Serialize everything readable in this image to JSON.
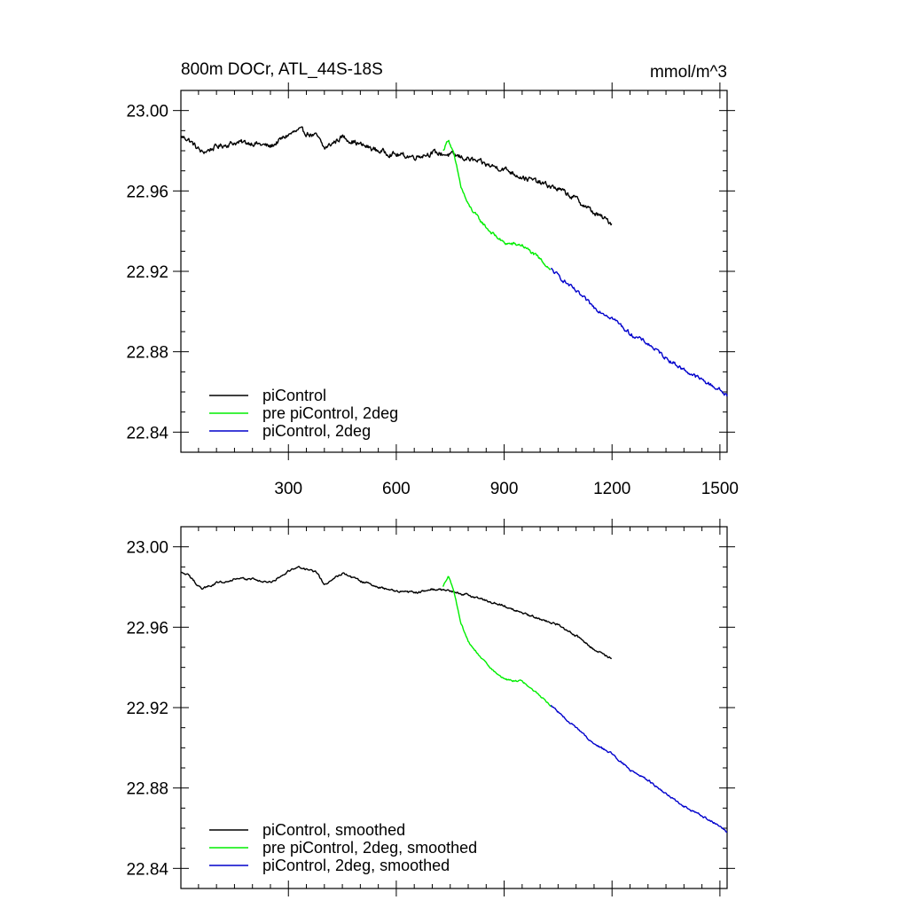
{
  "header": {
    "title": "800m DOCr, ATL_44S-18S",
    "units": "mmol/m^3"
  },
  "colors": {
    "piControl": "#000000",
    "pre_2deg": "#00ee00",
    "piControl_2deg": "#0000cc"
  },
  "chart_data": [
    {
      "type": "line",
      "panel": "top",
      "xlim": [
        1,
        1520
      ],
      "ylim": [
        22.83,
        23.01
      ],
      "xticks": [
        300,
        600,
        900,
        1200,
        1500
      ],
      "xtick_labels": [
        "300",
        "600",
        "900",
        "1200",
        "1500"
      ],
      "yticks": [
        22.84,
        22.88,
        22.92,
        22.96,
        23.0
      ],
      "ytick_labels": [
        "22.84",
        "22.88",
        "22.92",
        "22.96",
        "23.00"
      ],
      "legend": [
        "piControl",
        "pre piControl, 2deg",
        "piControl, 2deg"
      ],
      "legend_position": "bottom-left",
      "series": [
        {
          "name": "piControl",
          "color": "#000000",
          "noise": 0.0022,
          "x": [
            1,
            20,
            60,
            100,
            150,
            200,
            250,
            300,
            330,
            380,
            400,
            450,
            500,
            550,
            600,
            650,
            700,
            750,
            800,
            850,
            900,
            950,
            1000,
            1050,
            1100,
            1150,
            1200
          ],
          "y": [
            22.987,
            22.986,
            22.979,
            22.982,
            22.984,
            22.984,
            22.982,
            22.988,
            22.99,
            22.987,
            22.981,
            22.987,
            22.983,
            22.98,
            22.978,
            22.977,
            22.979,
            22.978,
            22.976,
            22.973,
            22.971,
            22.967,
            22.964,
            22.961,
            22.956,
            22.949,
            22.944
          ]
        },
        {
          "name": "pre piControl, 2deg",
          "color": "#00ee00",
          "noise": 0.0014,
          "x": [
            730,
            745,
            760,
            780,
            800,
            830,
            860,
            900,
            950,
            1000,
            1030
          ],
          "y": [
            22.98,
            22.986,
            22.978,
            22.962,
            22.953,
            22.946,
            22.94,
            22.934,
            22.933,
            22.926,
            22.921
          ]
        },
        {
          "name": "piControl, 2deg",
          "color": "#0000cc",
          "noise": 0.0016,
          "x": [
            1030,
            1100,
            1150,
            1200,
            1250,
            1300,
            1350,
            1400,
            1450,
            1500,
            1520
          ],
          "y": [
            22.921,
            22.91,
            22.902,
            22.897,
            22.889,
            22.884,
            22.877,
            22.871,
            22.866,
            22.861,
            22.858
          ]
        }
      ]
    },
    {
      "type": "line",
      "panel": "bottom",
      "xlim": [
        1,
        1520
      ],
      "ylim": [
        22.83,
        23.01
      ],
      "xticks": [
        300,
        600,
        900,
        1200,
        1500
      ],
      "yticks": [
        22.84,
        22.88,
        22.92,
        22.96,
        23.0
      ],
      "ytick_labels": [
        "22.84",
        "22.88",
        "22.92",
        "22.96",
        "23.00"
      ],
      "legend": [
        "piControl, smoothed",
        "pre piControl, 2deg, smoothed",
        "piControl, 2deg, smoothed"
      ],
      "legend_position": "bottom-left",
      "series": [
        {
          "name": "piControl, smoothed",
          "color": "#000000",
          "noise": 0.0009,
          "x": [
            1,
            20,
            60,
            100,
            150,
            200,
            250,
            300,
            330,
            380,
            400,
            450,
            500,
            550,
            600,
            650,
            700,
            750,
            800,
            850,
            900,
            950,
            1000,
            1050,
            1100,
            1150,
            1200
          ],
          "y": [
            22.987,
            22.986,
            22.979,
            22.982,
            22.984,
            22.984,
            22.982,
            22.988,
            22.99,
            22.987,
            22.981,
            22.987,
            22.983,
            22.98,
            22.978,
            22.977,
            22.979,
            22.978,
            22.976,
            22.973,
            22.971,
            22.967,
            22.964,
            22.961,
            22.956,
            22.949,
            22.944
          ]
        },
        {
          "name": "pre piControl, 2deg, smoothed",
          "color": "#00ee00",
          "noise": 0.0007,
          "x": [
            730,
            745,
            760,
            780,
            800,
            830,
            860,
            900,
            950,
            1000,
            1030
          ],
          "y": [
            22.98,
            22.986,
            22.978,
            22.962,
            22.953,
            22.946,
            22.94,
            22.934,
            22.933,
            22.926,
            22.921
          ]
        },
        {
          "name": "piControl, 2deg, smoothed",
          "color": "#0000cc",
          "noise": 0.0008,
          "x": [
            1030,
            1100,
            1150,
            1200,
            1250,
            1300,
            1350,
            1400,
            1450,
            1500,
            1520
          ],
          "y": [
            22.921,
            22.91,
            22.902,
            22.897,
            22.889,
            22.884,
            22.877,
            22.871,
            22.866,
            22.861,
            22.858
          ]
        }
      ]
    }
  ]
}
